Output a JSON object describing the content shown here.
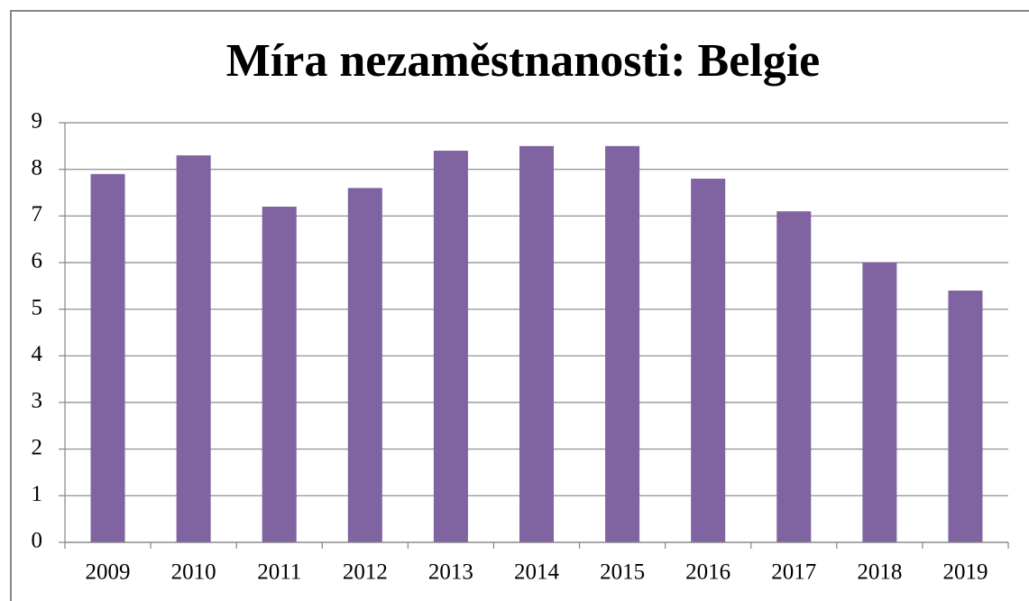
{
  "chart_data": {
    "type": "bar",
    "title": "Míra nezaměstnanosti: Belgie",
    "categories": [
      "2009",
      "2010",
      "2011",
      "2012",
      "2013",
      "2014",
      "2015",
      "2016",
      "2017",
      "2018",
      "2019"
    ],
    "values": [
      7.9,
      8.3,
      7.2,
      7.6,
      8.4,
      8.5,
      8.5,
      7.8,
      7.1,
      6.0,
      5.4
    ],
    "color": "#8064a2",
    "ylim": [
      0,
      9
    ],
    "yticks": [
      0,
      1,
      2,
      3,
      4,
      5,
      6,
      7,
      8,
      9
    ],
    "grid": true
  }
}
